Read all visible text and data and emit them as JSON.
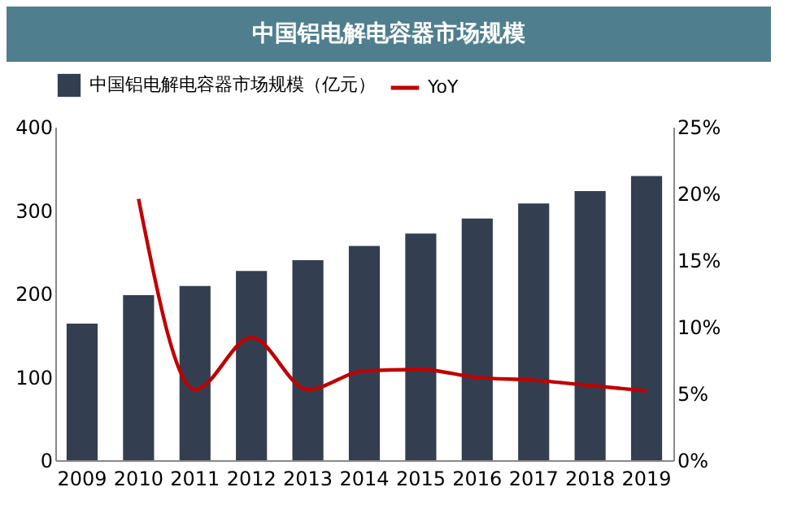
{
  "chart_data": {
    "type": "bar",
    "title": "中国铝电解电容器市场规模",
    "categories": [
      "2009",
      "2010",
      "2011",
      "2012",
      "2013",
      "2014",
      "2015",
      "2016",
      "2017",
      "2018",
      "2019"
    ],
    "series": [
      {
        "name": "中国铝电解电容器市场规模（亿元）",
        "color": "#333f50",
        "values": [
          164,
          198,
          209,
          227,
          240,
          257,
          272,
          290,
          308,
          323,
          341
        ]
      },
      {
        "name": "YoY",
        "type": "line",
        "axis": "y2",
        "color": "#c00000",
        "values": [
          null,
          19.6,
          5.3,
          9.2,
          5.3,
          6.7,
          6.8,
          6.2,
          6.0,
          5.6,
          5.2
        ]
      }
    ],
    "ylim": [
      0,
      400
    ],
    "yticks": [
      0,
      100,
      200,
      300,
      400
    ],
    "y2lim": [
      0,
      25
    ],
    "y2ticks": [
      {
        "value": 0,
        "label": "0%"
      },
      {
        "value": 5,
        "label": "5%"
      },
      {
        "value": 10,
        "label": "10%"
      },
      {
        "value": 15,
        "label": "15%"
      },
      {
        "value": 20,
        "label": "20%"
      },
      {
        "value": 25,
        "label": "25%"
      }
    ],
    "grid": false,
    "legend": "top",
    "marker": "none",
    "line_style": "solid"
  }
}
